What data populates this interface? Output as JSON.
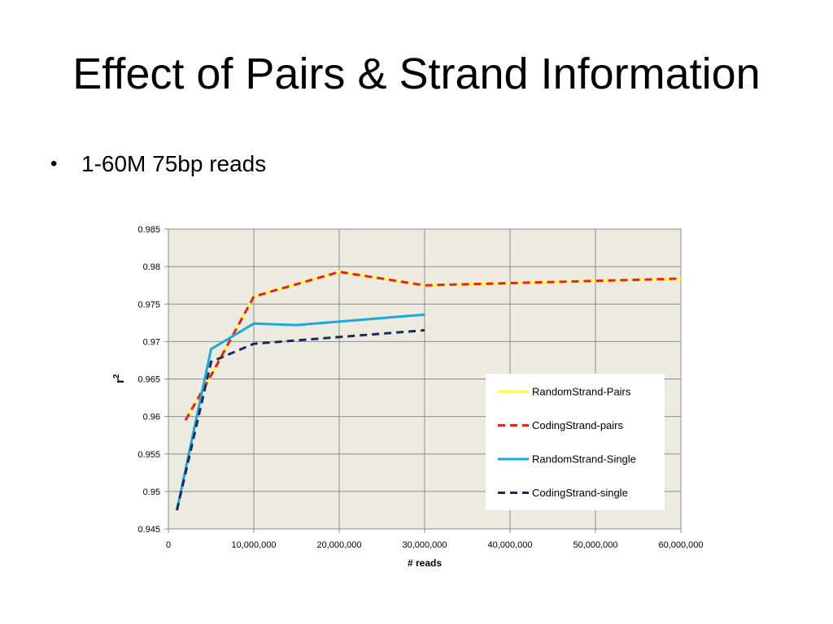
{
  "slide": {
    "title": "Effect of Pairs & Strand Information",
    "bullets": [
      "1-60M 75bp reads"
    ]
  },
  "chart_data": {
    "type": "line",
    "xlabel": "# reads",
    "ylabel": "r",
    "ylabel_superscript": "2",
    "xlim": [
      0,
      60000000
    ],
    "ylim": [
      0.945,
      0.985
    ],
    "x_ticks": [
      0,
      10000000,
      20000000,
      30000000,
      40000000,
      50000000,
      60000000
    ],
    "x_tick_labels": [
      "0",
      "10,000,000",
      "20,000,000",
      "30,000,000",
      "40,000,000",
      "50,000,000",
      "60,000,000"
    ],
    "y_ticks": [
      0.945,
      0.95,
      0.955,
      0.96,
      0.965,
      0.97,
      0.975,
      0.98,
      0.985
    ],
    "y_tick_labels": [
      "0.945",
      "0.95",
      "0.955",
      "0.96",
      "0.965",
      "0.97",
      "0.975",
      "0.98",
      "0.985"
    ],
    "grid": true,
    "legend_position": "right",
    "plot_background": "#EDEAE0",
    "series": [
      {
        "name": "RandomStrand-Pairs",
        "color": "#FFFF33",
        "dashed": false,
        "x": [
          2000000,
          5000000,
          10000000,
          20000000,
          30000000,
          60000000
        ],
        "y": [
          0.9595,
          0.9655,
          0.976,
          0.9793,
          0.9775,
          0.9784
        ]
      },
      {
        "name": "CodingStrand-pairs",
        "color": "#E8231E",
        "dashed": true,
        "x": [
          2000000,
          5000000,
          10000000,
          20000000,
          30000000,
          60000000
        ],
        "y": [
          0.9595,
          0.9655,
          0.976,
          0.9793,
          0.9775,
          0.9784
        ]
      },
      {
        "name": "RandomStrand-Single",
        "color": "#19A9E1",
        "dashed": false,
        "x": [
          1000000,
          5000000,
          10000000,
          15000000,
          30000000
        ],
        "y": [
          0.9475,
          0.969,
          0.9724,
          0.9722,
          0.9736
        ]
      },
      {
        "name": "CodingStrand-single",
        "color": "#1B2A5E",
        "dashed": true,
        "x": [
          1000000,
          5000000,
          10000000,
          20000000,
          30000000
        ],
        "y": [
          0.9475,
          0.9673,
          0.9697,
          0.9706,
          0.9715
        ]
      }
    ]
  }
}
